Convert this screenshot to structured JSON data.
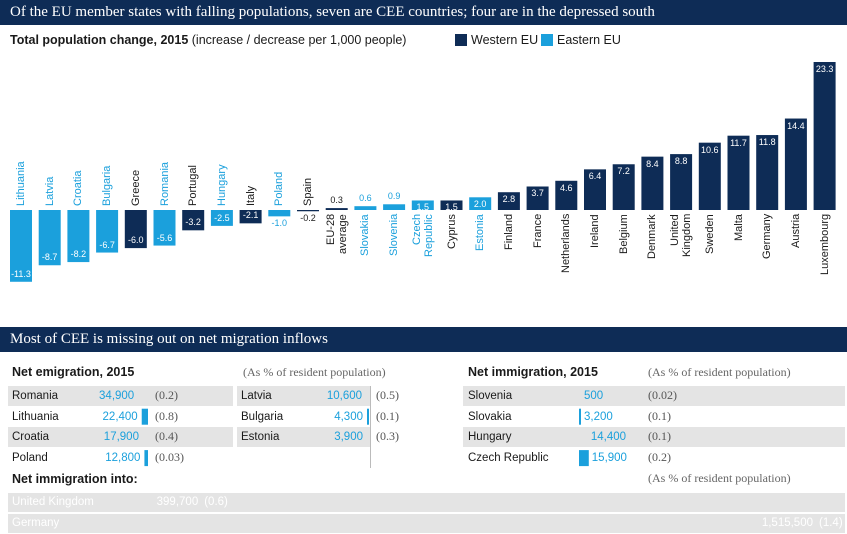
{
  "header": {
    "title": "Of the EU member states with falling populations, seven are CEE countries; four are in the depressed south"
  },
  "chart_data": {
    "type": "bar",
    "title": "Total population change, 2015",
    "subtitle": "(increase / decrease per 1,000 people)",
    "categories": [
      "Lithuania",
      "Latvia",
      "Croatia",
      "Bulgaria",
      "Greece",
      "Romania",
      "Portugal",
      "Hungary",
      "Italy",
      "Poland",
      "Spain",
      "EU-28\naverage",
      "Slovakia",
      "Slovenia",
      "Czech\nRepublic",
      "Cyprus",
      "Estonia",
      "Finland",
      "France",
      "Netherlands",
      "Ireland",
      "Belgium",
      "Denmark",
      "United\nKingdom",
      "Sweden",
      "Malta",
      "Germany",
      "Austria",
      "Luxembourg"
    ],
    "series": [
      {
        "name": "Western EU",
        "color": "#0e2c56",
        "values": [
          null,
          null,
          null,
          null,
          -6.0,
          null,
          -3.2,
          null,
          -2.1,
          null,
          -0.2,
          0.3,
          null,
          null,
          null,
          1.5,
          null,
          2.8,
          3.7,
          4.6,
          6.4,
          7.2,
          8.4,
          8.8,
          10.6,
          11.7,
          11.8,
          14.4,
          23.3
        ],
        "value_labels": [
          null,
          null,
          null,
          null,
          "-6.0",
          null,
          "-3.2",
          null,
          "-2.1",
          null,
          "-0.2",
          "0.3",
          null,
          null,
          null,
          "1.5",
          null,
          "2.8",
          "3.7",
          "4.6",
          "6.4",
          "7.2",
          "8.4",
          "8.8",
          "10.6",
          "11.7",
          "11.8",
          "14.4",
          "23.3"
        ]
      },
      {
        "name": "Eastern EU",
        "color": "#1ba0dc",
        "values": [
          -11.3,
          -8.7,
          -8.2,
          -6.7,
          null,
          -5.6,
          null,
          -2.5,
          null,
          -1.0,
          null,
          null,
          0.6,
          0.9,
          1.5,
          null,
          2.0,
          null,
          null,
          null,
          null,
          null,
          null,
          null,
          null,
          null,
          null,
          null,
          null
        ],
        "value_labels": [
          "-11.3",
          "-8.7",
          "-8.2",
          "-6.7",
          null,
          "-5.6",
          null,
          "-2.5",
          null,
          "-1.0",
          null,
          null,
          "0.6",
          "0.9",
          "1.5",
          null,
          "2.0",
          null,
          null,
          null,
          null,
          null,
          null,
          null,
          null,
          null,
          null,
          null,
          null
        ]
      }
    ]
  },
  "migration": {
    "title": "Most of CEE is missing out on net migration inflows",
    "emigration": {
      "title": "Net emigration, 2015",
      "note": "(As % of resident population)",
      "rows": [
        {
          "name": "Romania",
          "value": 34900,
          "value_label": "34,900",
          "share": 0.2,
          "share_label": "(0.2)"
        },
        {
          "name": "Lithuania",
          "value": 22400,
          "value_label": "22,400",
          "share": 0.8,
          "share_label": "(0.8)"
        },
        {
          "name": "Croatia",
          "value": 17900,
          "value_label": "17,900",
          "share": 0.4,
          "share_label": "(0.4)"
        },
        {
          "name": "Poland",
          "value": 12800,
          "value_label": "12,800",
          "share": 0.03,
          "share_label": "(0.03)"
        },
        {
          "name": "Latvia",
          "value": 10600,
          "value_label": "10,600",
          "share": 0.5,
          "share_label": "(0.5)"
        },
        {
          "name": "Bulgaria",
          "value": 4300,
          "value_label": "4,300",
          "share": 0.1,
          "share_label": "(0.1)"
        },
        {
          "name": "Estonia",
          "value": 3900,
          "value_label": "3,900",
          "share": 0.3,
          "share_label": "(0.3)"
        }
      ]
    },
    "immigration": {
      "title": "Net immigration, 2015",
      "note": "(As % of resident population)",
      "rows": [
        {
          "name": "Slovenia",
          "value": 500,
          "value_label": "500",
          "share": 0.02,
          "share_label": "(0.02)"
        },
        {
          "name": "Slovakia",
          "value": 3200,
          "value_label": "3,200",
          "share": 0.1,
          "share_label": "(0.1)"
        },
        {
          "name": "Hungary",
          "value": 14400,
          "value_label": "14,400",
          "share": 0.1,
          "share_label": "(0.1)"
        },
        {
          "name": "Czech Republic",
          "value": 15900,
          "value_label": "15,900",
          "share": 0.2,
          "share_label": "(0.2)"
        }
      ]
    },
    "immigration_into": {
      "title": "Net immigration into:",
      "note": "(As % of resident population)",
      "rows": [
        {
          "name": "United Kingdom",
          "value": 399700,
          "value_label": "399,700",
          "share": 0.6,
          "share_label": "(0.6)"
        },
        {
          "name": "Germany",
          "value": 1515500,
          "value_label": "1,515,500",
          "share": 1.4,
          "share_label": "(1.4)"
        }
      ]
    }
  }
}
